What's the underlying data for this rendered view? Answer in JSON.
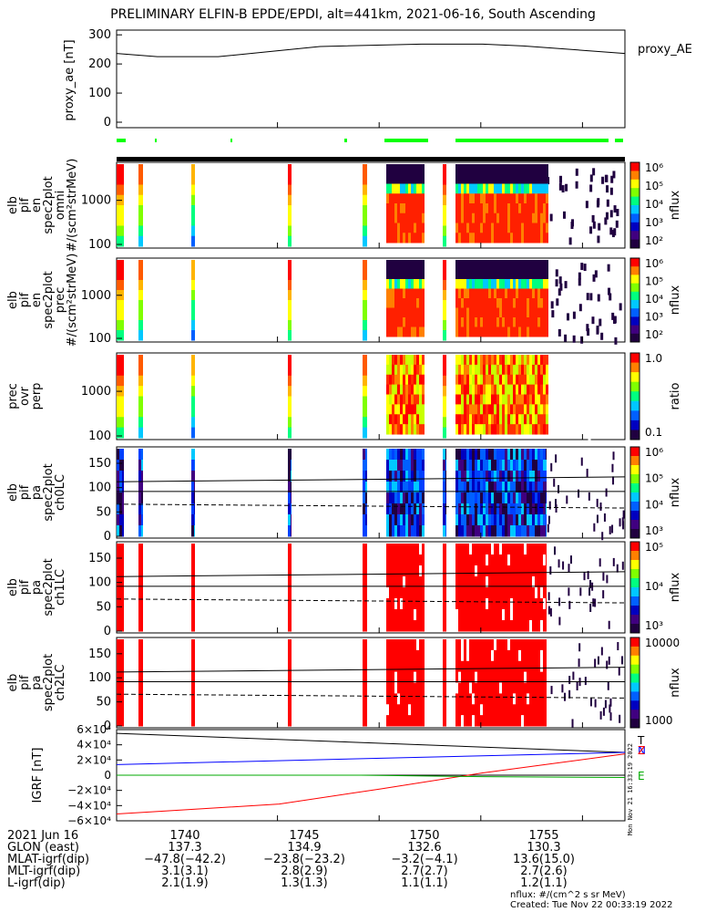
{
  "title": "PRELIMINARY ELFIN-B EPDE/EPDI, alt=441km, 2021-06-16, South Ascending",
  "chart_data": [
    {
      "type": "line",
      "panel": "proxy_AE",
      "ylabel": "proxy_ae [nT]",
      "series_label": "proxy_AE",
      "yticks": [
        "0",
        "100",
        "200",
        "300"
      ],
      "ylim": [
        0,
        310
      ],
      "x_minutes": [
        0,
        2,
        5,
        10,
        15,
        18,
        20,
        25
      ],
      "values": [
        236,
        225,
        225,
        260,
        268,
        268,
        262,
        236
      ]
    },
    {
      "type": "heatmap",
      "panel": "elb_pif_en_spec2plot_omni",
      "ylabel": [
        "elb",
        "pif",
        "en",
        "spec2plot",
        "omni",
        "#/(scm²strMeV)"
      ],
      "yticks": [
        "100",
        "1000"
      ],
      "colorbar": {
        "label": "nflux",
        "ticks": [
          "10⁶",
          "10⁵",
          "10⁴",
          "10³",
          "10²"
        ]
      }
    },
    {
      "type": "heatmap",
      "panel": "elb_pif_en_spec2plot_prec",
      "ylabel": [
        "elb",
        "pif",
        "en",
        "spec2plot",
        "prec",
        "#/(scm²strMeV)"
      ],
      "yticks": [
        "100",
        "1000"
      ],
      "colorbar": {
        "label": "nflux",
        "ticks": [
          "10⁶",
          "10⁵",
          "10⁴",
          "10³",
          "10²"
        ]
      }
    },
    {
      "type": "heatmap",
      "panel": "prec_ovr_perp",
      "ylabel": [
        "prec",
        "ovr",
        "perp"
      ],
      "yticks": [
        "100",
        "1000"
      ],
      "colorbar": {
        "label": "ratio",
        "ticks": [
          "1.0",
          "0.1"
        ]
      }
    },
    {
      "type": "heatmap",
      "panel": "elb_pif_pa_spec2plot_ch0LC",
      "ylabel": [
        "elb",
        "pif",
        "pa",
        "spec2plot",
        "ch0LC"
      ],
      "yticks": [
        "0",
        "50",
        "100",
        "150"
      ],
      "colorbar": {
        "label": "nflux",
        "ticks": [
          "10⁶",
          "10⁵",
          "10⁴",
          "10³"
        ]
      }
    },
    {
      "type": "heatmap",
      "panel": "elb_pif_pa_spec2plot_ch1LC",
      "ylabel": [
        "elb",
        "pif",
        "pa",
        "spec2plot",
        "ch1LC"
      ],
      "yticks": [
        "0",
        "50",
        "100",
        "150"
      ],
      "colorbar": {
        "label": "nflux",
        "ticks": [
          "10⁵",
          "10⁴",
          "10³"
        ]
      }
    },
    {
      "type": "heatmap",
      "panel": "elb_pif_pa_spec2plot_ch2LC",
      "ylabel": [
        "elb",
        "pif",
        "pa",
        "spec2plot",
        "ch2LC"
      ],
      "yticks": [
        "0",
        "50",
        "100",
        "150"
      ],
      "colorbar": {
        "label": "nflux",
        "ticks": [
          "10000",
          "1000"
        ]
      }
    },
    {
      "type": "line",
      "panel": "IGRF",
      "ylabel": "IGRF [nT]",
      "yticks": [
        "6×10⁴",
        "4×10⁴",
        "2×10⁴",
        "0",
        "−2×10⁴",
        "−4×10⁴",
        "−6×10⁴"
      ],
      "ylim": [
        -60000,
        60000
      ],
      "series": [
        {
          "name": "T",
          "color": "#000000",
          "x_minutes": [
            0,
            25
          ],
          "values": [
            55000,
            30000
          ]
        },
        {
          "name": "N",
          "color": "#0000ff",
          "x_minutes": [
            0,
            25
          ],
          "values": [
            14000,
            30000
          ]
        },
        {
          "name": "Z",
          "color": "#ff0000",
          "x_minutes": [
            0,
            8,
            13,
            18,
            25
          ],
          "values": [
            -51000,
            -38000,
            -18000,
            3000,
            28000
          ]
        },
        {
          "name": "E",
          "color": "#00aa00",
          "x_minutes": [
            0,
            12,
            18,
            25
          ],
          "values": [
            0,
            0,
            -2000,
            -3000
          ]
        }
      ]
    }
  ],
  "orbit": {
    "labels": [
      "2021 Jun 16",
      "GLON (east)",
      "MLAT-igrf(dip)",
      "MLT-igrf(dip)",
      "L-igrf(dip)"
    ],
    "columns": [
      {
        "time": "1740",
        "glon": "137.3",
        "mlat": "−47.8(−42.2)",
        "mlt": "3.1(3.1)",
        "l": "2.1(1.9)"
      },
      {
        "time": "1745",
        "glon": "134.9",
        "mlat": "−23.8(−23.2)",
        "mlt": "2.8(2.9)",
        "l": "1.3(1.3)"
      },
      {
        "time": "1750",
        "glon": "132.6",
        "mlat": "−3.2(−4.1)",
        "mlt": "2.7(2.7)",
        "l": "1.1(1.1)"
      },
      {
        "time": "1755",
        "glon": "130.3",
        "mlat": "13.6(15.0)",
        "mlt": "2.7(2.6)",
        "l": "1.2(1.1)"
      }
    ]
  },
  "footer": {
    "units": "nflux: #/(cm^2 s sr MeV)",
    "created": "Created: Tue Nov 22 00:33:19 2022"
  },
  "side_note": "Mon Nov 21 16:33:19 2022"
}
